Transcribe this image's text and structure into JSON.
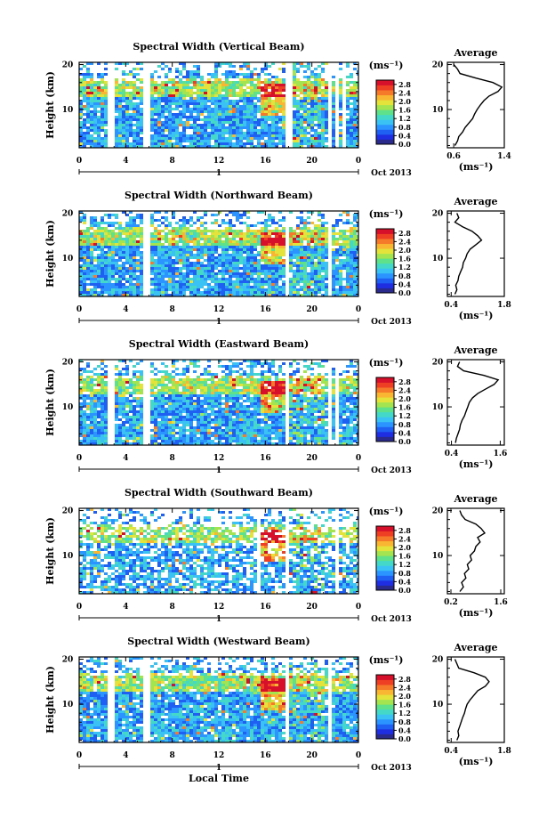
{
  "colorbar_unit": "(ms⁻¹)",
  "colorbar_ticks": [
    "2.8",
    "2.4",
    "2.0",
    "1.6",
    "1.2",
    "0.8",
    "0.4",
    "0.0"
  ],
  "colormap": [
    "#2a2a8c",
    "#1e2ee0",
    "#1f5ff2",
    "#2b94ff",
    "#3bc2f4",
    "#43d8c8",
    "#5fe08a",
    "#a4e450",
    "#e4e33c",
    "#f8b633",
    "#f57b2a",
    "#ee3e24",
    "#d6102a"
  ],
  "time_label": "Local Time",
  "date_label": "Oct 2013",
  "day_label": "1",
  "ylabel": "Height (km)",
  "avg_xlabel": "(ms⁻¹)",
  "chart_data": [
    {
      "type": "heatmap",
      "title": "Spectral Width (Vertical Beam)",
      "x_ticks": [
        "0",
        "4",
        "8",
        "12",
        "16",
        "20",
        "0"
      ],
      "y_ticks": [
        "20",
        "10"
      ],
      "xlim": [
        0,
        24
      ],
      "ylim": [
        1.5,
        20.5
      ],
      "value_range": [
        0.0,
        3.0
      ],
      "data_gaps_hours": [
        [
          2.4,
          3.0
        ],
        [
          5.4,
          6.1
        ],
        [
          17.6,
          18.2
        ],
        [
          21.2,
          21.6
        ],
        [
          22.0,
          22.3
        ],
        [
          22.6,
          22.9
        ]
      ],
      "average_profile": {
        "title": "Average",
        "x_ticks": [
          "0.6",
          "1.4"
        ],
        "xlim": [
          0.5,
          1.4
        ],
        "y_ticks": [
          "20",
          "10"
        ],
        "height_km": [
          2,
          3,
          4,
          5,
          6,
          7,
          8,
          9,
          10,
          11,
          12,
          13,
          14,
          15,
          16,
          17,
          18,
          19,
          20
        ],
        "width_ms": [
          0.62,
          0.66,
          0.68,
          0.74,
          0.78,
          0.84,
          0.9,
          0.93,
          0.97,
          1.02,
          1.08,
          1.16,
          1.3,
          1.36,
          1.22,
          0.95,
          0.7,
          0.66,
          0.6
        ]
      }
    },
    {
      "type": "heatmap",
      "title": "Spectral Width (Northward Beam)",
      "x_ticks": [
        "0",
        "4",
        "8",
        "12",
        "16",
        "20",
        "0"
      ],
      "y_ticks": [
        "20",
        "10"
      ],
      "xlim": [
        0,
        24
      ],
      "ylim": [
        1.5,
        20.5
      ],
      "value_range": [
        0.0,
        3.0
      ],
      "data_gaps_hours": [
        [
          5.4,
          6.0
        ],
        [
          17.6,
          18.0
        ],
        [
          21.2,
          21.6
        ]
      ],
      "average_profile": {
        "title": "Average",
        "x_ticks": [
          "0.4",
          "1.8"
        ],
        "xlim": [
          0.3,
          1.8
        ],
        "y_ticks": [
          "20",
          "10"
        ],
        "height_km": [
          2,
          3,
          4,
          5,
          6,
          7,
          8,
          9,
          10,
          11,
          12,
          13,
          14,
          15,
          16,
          17,
          18,
          19,
          20
        ],
        "width_ms": [
          0.5,
          0.55,
          0.52,
          0.58,
          0.6,
          0.65,
          0.7,
          0.72,
          0.78,
          0.82,
          0.9,
          1.05,
          1.2,
          1.1,
          0.95,
          0.7,
          0.5,
          0.6,
          0.55
        ]
      }
    },
    {
      "type": "heatmap",
      "title": "Spectral Width (Eastward Beam)",
      "x_ticks": [
        "0",
        "4",
        "8",
        "12",
        "16",
        "20",
        "0"
      ],
      "y_ticks": [
        "20",
        "10"
      ],
      "xlim": [
        0,
        24
      ],
      "ylim": [
        1.5,
        20.5
      ],
      "value_range": [
        0.0,
        3.0
      ],
      "data_gaps_hours": [
        [
          2.4,
          3.0
        ],
        [
          5.4,
          6.0
        ],
        [
          17.6,
          18.0
        ],
        [
          21.2,
          21.6
        ],
        [
          22.0,
          22.3
        ]
      ],
      "average_profile": {
        "title": "Average",
        "x_ticks": [
          "0.4",
          "1.6"
        ],
        "xlim": [
          0.3,
          1.7
        ],
        "y_ticks": [
          "20",
          "10"
        ],
        "height_km": [
          2,
          3,
          4,
          5,
          6,
          7,
          8,
          9,
          10,
          11,
          12,
          13,
          14,
          15,
          16,
          17,
          18,
          19,
          20
        ],
        "width_ms": [
          0.5,
          0.52,
          0.56,
          0.6,
          0.62,
          0.66,
          0.72,
          0.76,
          0.8,
          0.84,
          0.92,
          1.05,
          1.25,
          1.45,
          1.55,
          1.2,
          0.7,
          0.55,
          0.6
        ]
      }
    },
    {
      "type": "heatmap",
      "title": "Spectral Width (Southward Beam)",
      "x_ticks": [
        "0",
        "4",
        "8",
        "12",
        "16",
        "20",
        "0"
      ],
      "y_ticks": [
        "20",
        "10"
      ],
      "xlim": [
        0,
        24
      ],
      "ylim": [
        1.5,
        20.5
      ],
      "value_range": [
        0.0,
        3.0
      ],
      "data_gaps_hours": [
        [
          15.2,
          15.5
        ],
        [
          17.6,
          18.0
        ],
        [
          22.0,
          22.3
        ]
      ],
      "average_profile": {
        "title": "Average",
        "x_ticks": [
          "0.2",
          "1.6"
        ],
        "xlim": [
          0.1,
          1.7
        ],
        "y_ticks": [
          "20",
          "10"
        ],
        "height_km": [
          2,
          3,
          4,
          5,
          6,
          7,
          8,
          9,
          10,
          11,
          12,
          13,
          14,
          15,
          16,
          17,
          18,
          19,
          20
        ],
        "width_ms": [
          0.45,
          0.55,
          0.5,
          0.62,
          0.58,
          0.7,
          0.66,
          0.78,
          0.74,
          0.86,
          0.9,
          1.02,
          0.95,
          1.15,
          1.05,
          0.9,
          0.6,
          0.5,
          0.45
        ]
      }
    },
    {
      "type": "heatmap",
      "title": "Spectral Width (Westward Beam)",
      "x_ticks": [
        "0",
        "4",
        "8",
        "12",
        "16",
        "20",
        "0"
      ],
      "y_ticks": [
        "20",
        "10"
      ],
      "xlim": [
        0,
        24
      ],
      "ylim": [
        1.5,
        20.5
      ],
      "value_range": [
        0.0,
        3.0
      ],
      "data_gaps_hours": [
        [
          2.4,
          3.0
        ],
        [
          5.4,
          6.0
        ],
        [
          17.6,
          18.0
        ],
        [
          21.2,
          21.6
        ]
      ],
      "average_profile": {
        "title": "Average",
        "x_ticks": [
          "0.4",
          "1.8"
        ],
        "xlim": [
          0.3,
          1.8
        ],
        "y_ticks": [
          "20",
          "10"
        ],
        "height_km": [
          2,
          3,
          4,
          5,
          6,
          7,
          8,
          9,
          10,
          11,
          12,
          13,
          14,
          15,
          16,
          17,
          18,
          19,
          20
        ],
        "width_ms": [
          0.55,
          0.6,
          0.58,
          0.62,
          0.66,
          0.7,
          0.75,
          0.78,
          0.82,
          0.9,
          1.0,
          1.1,
          1.3,
          1.4,
          1.3,
          1.0,
          0.6,
          0.55,
          0.5
        ]
      }
    }
  ]
}
